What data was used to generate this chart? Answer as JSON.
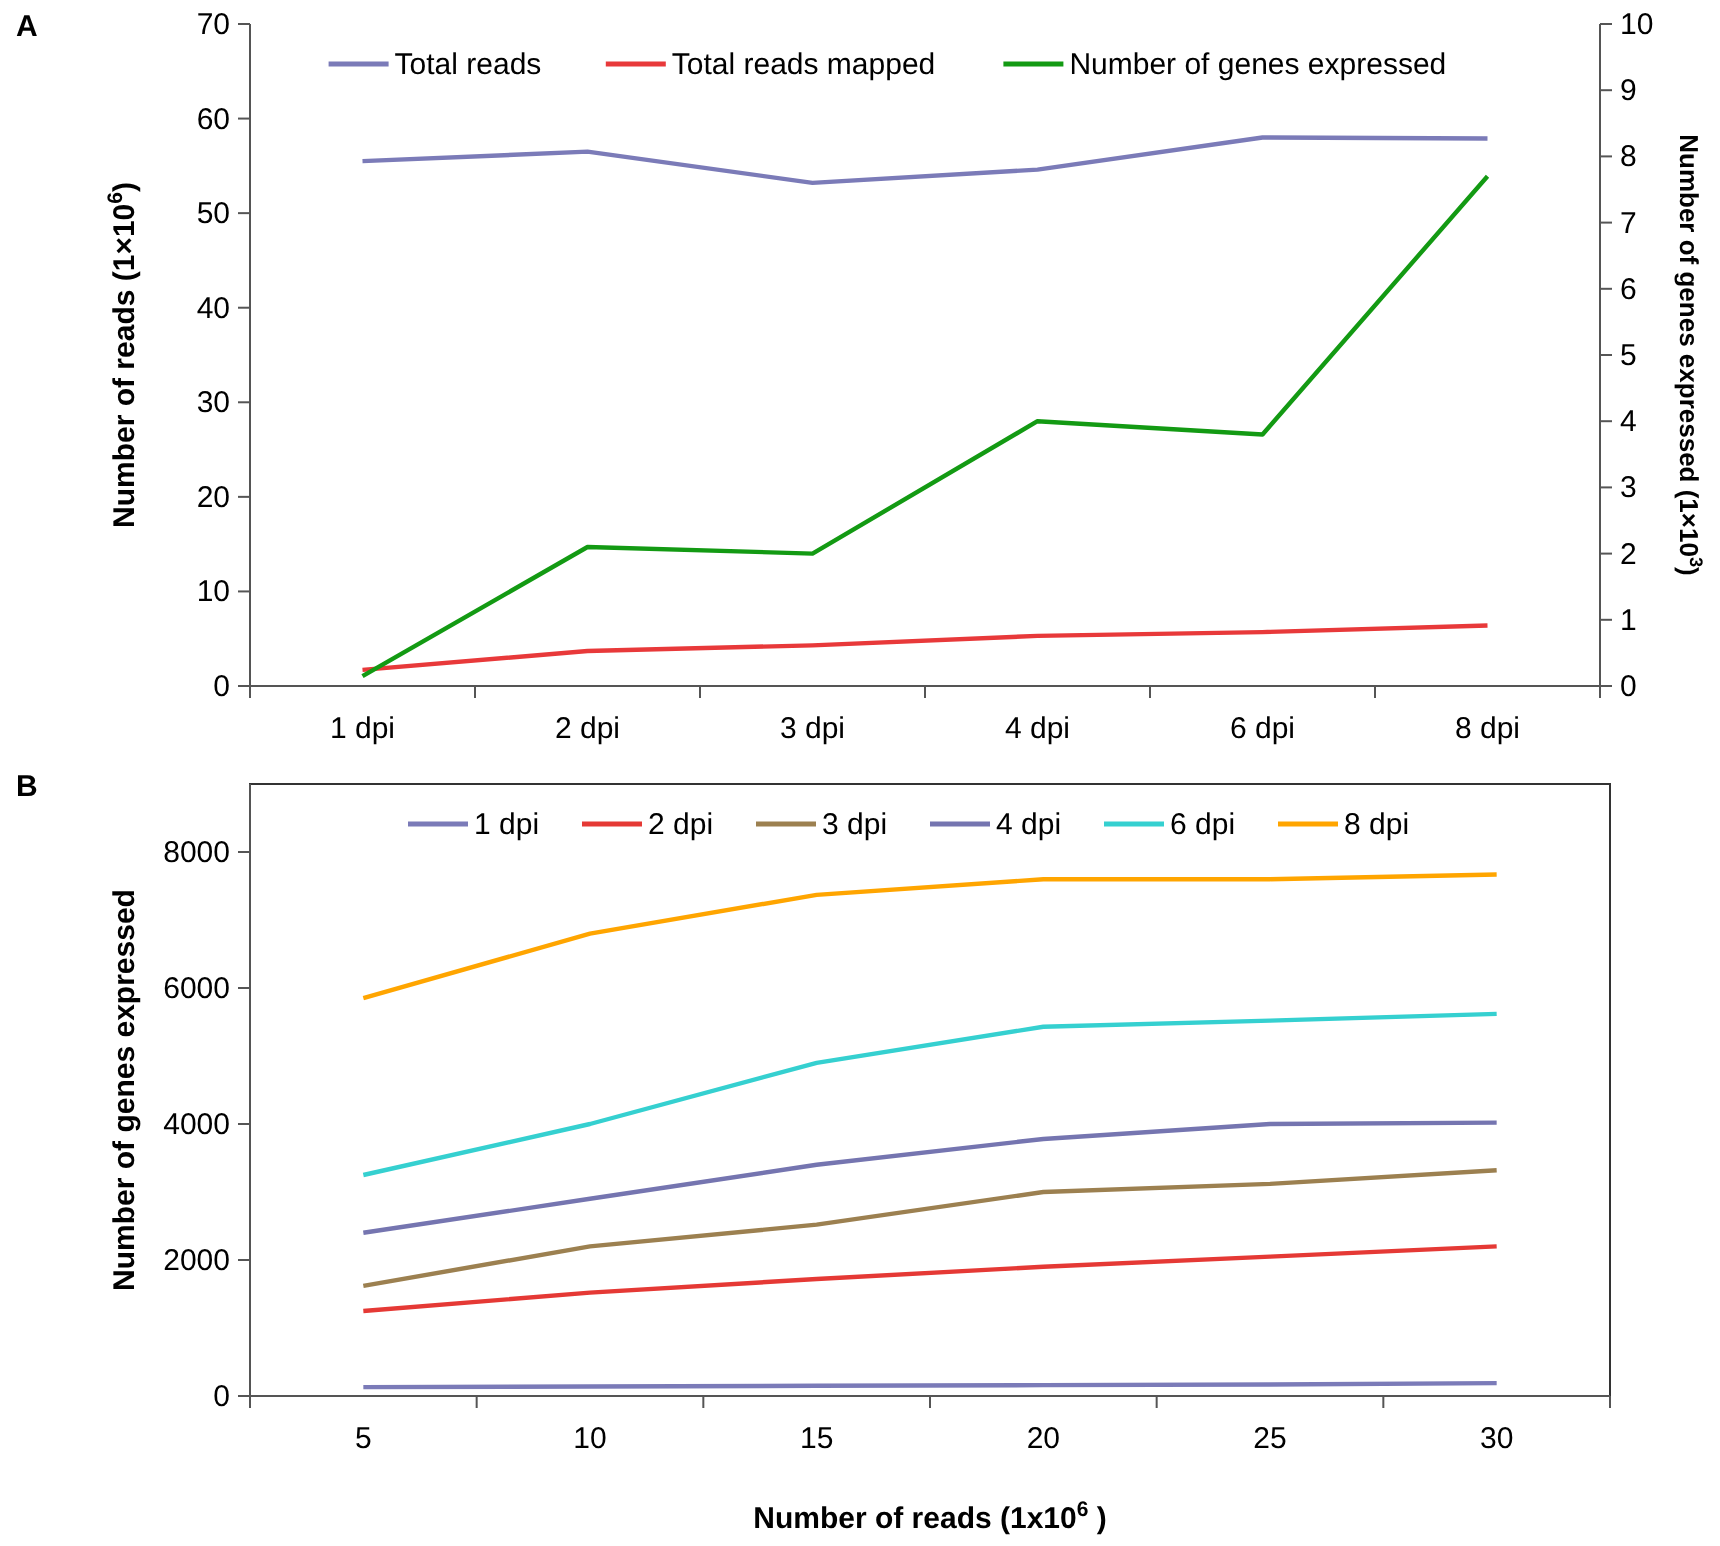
{
  "chart_data": [
    {
      "type": "line",
      "title": "A",
      "categories": [
        "1 dpi",
        "2 dpi",
        "3 dpi",
        "4 dpi",
        "6 dpi",
        "8 dpi"
      ],
      "ylabel": "Number of reads (1×10$^{6}$)",
      "y2label": "Number of genes expressed (1×10$^{3}$)",
      "ylim": [
        0,
        70
      ],
      "yticks": [
        0,
        10,
        20,
        30,
        40,
        50,
        60,
        70
      ],
      "y2lim": [
        0,
        10
      ],
      "y2ticks": [
        0,
        1,
        2,
        3,
        4,
        5,
        6,
        7,
        8,
        9,
        10
      ],
      "legend": "top",
      "grid": false,
      "marker": "none",
      "series": [
        {
          "name": "Total reads",
          "color": "#7b7bb8",
          "values": [
            55.5,
            56.5,
            53.2,
            54.6,
            58,
            57.9
          ]
        },
        {
          "name": "Total reads mapped",
          "color": "#e8393a",
          "values": [
            1.7,
            3.7,
            4.3,
            5.3,
            5.7,
            6.4
          ]
        },
        {
          "name": "Number of genes expressed",
          "color": "#139a13",
          "axis": "y2",
          "values": [
            0.15,
            2.1,
            2.0,
            4.0,
            3.8,
            7.7
          ]
        }
      ]
    },
    {
      "type": "line",
      "title": "B",
      "categories": [
        "5",
        "10",
        "15",
        "20",
        "25",
        "30"
      ],
      "xlabel": "Number of reads (1x10$^{6}$ )",
      "ylabel": "Number of genes expressed",
      "ylim": [
        0,
        9000
      ],
      "yticks": [
        0,
        2000,
        4000,
        6000,
        8000
      ],
      "legend": "top",
      "grid": false,
      "marker": "none",
      "series": [
        {
          "name": "1 dpi",
          "color": "#7b7bb8",
          "values": [
            130,
            140,
            150,
            160,
            170,
            190
          ]
        },
        {
          "name": "2 dpi",
          "color": "#e53935",
          "values": [
            1250,
            1520,
            1720,
            1900,
            2050,
            2200
          ]
        },
        {
          "name": "3 dpi",
          "color": "#9c8050",
          "values": [
            1620,
            2200,
            2520,
            3000,
            3120,
            3320
          ]
        },
        {
          "name": "4 dpi",
          "color": "#7575b0",
          "values": [
            2400,
            2900,
            3400,
            3780,
            4000,
            4020
          ]
        },
        {
          "name": "6 dpi",
          "color": "#35d0d0",
          "values": [
            3250,
            4000,
            4900,
            5430,
            5520,
            5620
          ]
        },
        {
          "name": "8 dpi",
          "color": "#ffa500",
          "values": [
            5850,
            6800,
            7370,
            7600,
            7600,
            7670
          ]
        }
      ]
    }
  ]
}
